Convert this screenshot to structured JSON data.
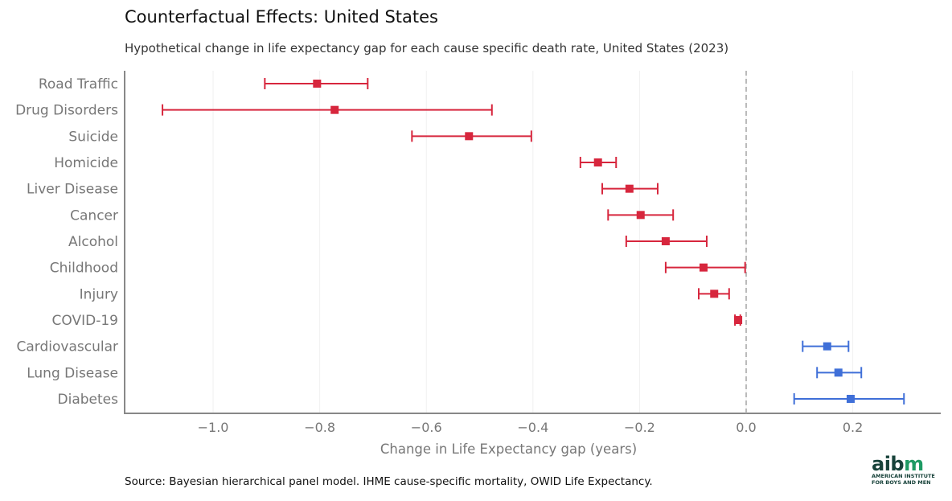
{
  "title": "Counterfactual Effects: United States",
  "subtitle": "Hypothetical change in life expectancy gap for each cause specific death rate, United States (2023)",
  "source": "Source: Bayesian hierarchical panel model. IHME cause-specific mortality, OWID Life Expectancy.",
  "logo": {
    "mark_a": "aib",
    "mark_b": "m",
    "line1": "AMERICAN INSTITUTE",
    "line2": "FOR BOYS AND MEN",
    "color_a": "#17423a",
    "color_b": "#1e9a64"
  },
  "chart_data": {
    "type": "forest",
    "title": "Counterfactual Effects: United States",
    "xlabel": "Change in Life Expectancy gap (years)",
    "ylabel": "",
    "xlim": [
      -1.166,
      0.365
    ],
    "xticks": [
      -1.0,
      -0.8,
      -0.6,
      -0.4,
      -0.2,
      0.0,
      0.2
    ],
    "xtick_labels": [
      "−1.0",
      "−0.8",
      "−0.6",
      "−0.4",
      "−0.2",
      "0.0",
      "0.2"
    ],
    "reference_line": 0.0,
    "grid": "vertical-light",
    "colors": {
      "negative": "#d7263d",
      "positive": "#3f6fd8",
      "reference": "#aaaaaa"
    },
    "categories": [
      "Road Traffic",
      "Drug Disorders",
      "Suicide",
      "Homicide",
      "Liver Disease",
      "Cancer",
      "Alcohol",
      "Childhood",
      "Injury",
      "COVID-19",
      "Cardiovascular",
      "Lung Disease",
      "Diabetes"
    ],
    "estimate": [
      -0.805,
      -0.772,
      -0.52,
      -0.278,
      -0.219,
      -0.198,
      -0.151,
      -0.08,
      -0.06,
      -0.015,
      0.152,
      0.173,
      0.196
    ],
    "lower": [
      -0.903,
      -1.095,
      -0.627,
      -0.311,
      -0.27,
      -0.259,
      -0.225,
      -0.151,
      -0.089,
      -0.021,
      0.106,
      0.133,
      0.09
    ],
    "upper": [
      -0.71,
      -0.477,
      -0.403,
      -0.244,
      -0.166,
      -0.137,
      -0.074,
      -0.002,
      -0.032,
      -0.011,
      0.192,
      0.216,
      0.296
    ]
  }
}
